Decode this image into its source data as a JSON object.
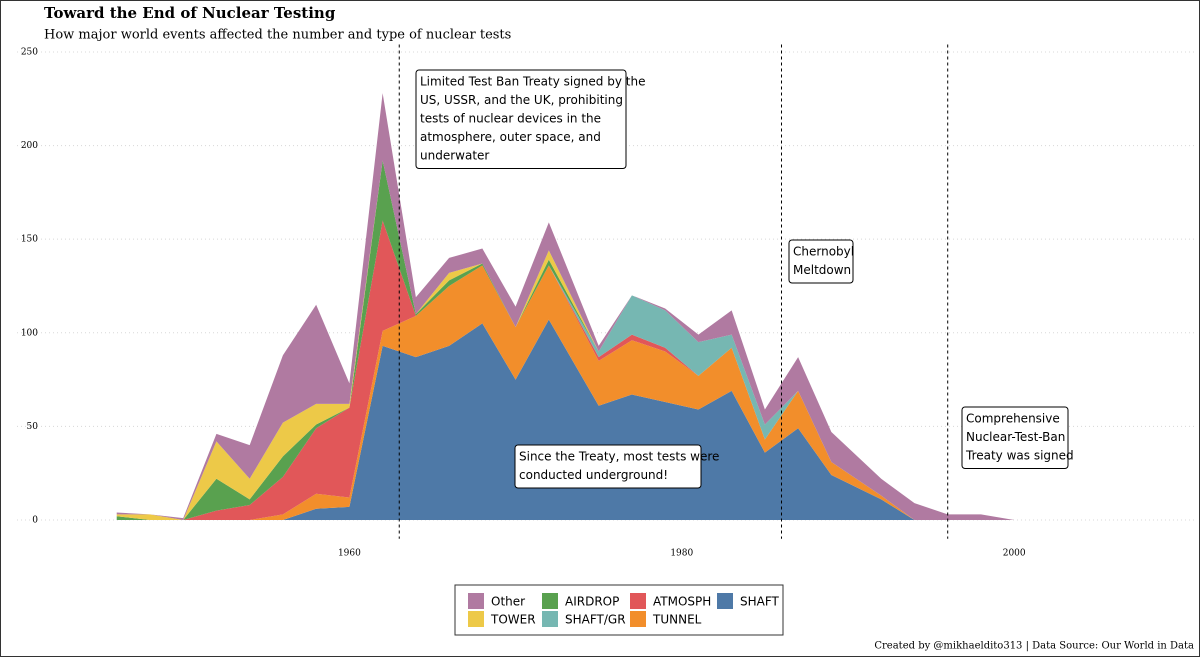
{
  "chart_data": {
    "type": "stacked-area",
    "title": "Toward the End of Nuclear Testing",
    "subtitle": "How major world events affected the number and type of nuclear tests",
    "caption": "Created by @mikhaeldito313 | Data Source: Our World in Data",
    "x": [
      1946,
      1948,
      1950,
      1952,
      1954,
      1956,
      1958,
      1960,
      1962,
      1964,
      1966,
      1968,
      1970,
      1972,
      1975,
      1977,
      1979,
      1981,
      1983,
      1985,
      1987,
      1989,
      1992,
      1994,
      1996,
      1998,
      2000
    ],
    "series": [
      {
        "name": "SHAFT",
        "color": "#4e79a7",
        "values": [
          0,
          0,
          0,
          0,
          0,
          0,
          6,
          7,
          93,
          87,
          93,
          105,
          75,
          107,
          61,
          67,
          63,
          59,
          69,
          36,
          49,
          24,
          11,
          0,
          0,
          0,
          0
        ]
      },
      {
        "name": "TUNNEL",
        "color": "#f28e2b",
        "values": [
          0,
          0,
          0,
          0,
          0,
          3,
          8,
          5,
          8,
          22,
          32,
          31,
          28,
          29,
          24,
          29,
          27,
          18,
          23,
          7,
          20,
          7,
          2,
          0,
          0,
          0,
          0
        ]
      },
      {
        "name": "ATMOSPH",
        "color": "#e15759",
        "values": [
          0,
          0,
          0,
          5,
          8,
          20,
          35,
          48,
          59,
          0,
          0,
          0,
          0,
          0,
          2,
          3,
          2,
          0,
          0,
          0,
          0,
          0,
          0,
          0,
          0,
          0,
          0
        ]
      },
      {
        "name": "SHAFT/GR",
        "color": "#76b7b2",
        "values": [
          0,
          0,
          0,
          0,
          0,
          0,
          0,
          0,
          0,
          0,
          0,
          0,
          0,
          0,
          3,
          21,
          20,
          18,
          7,
          8,
          0,
          0,
          0,
          0,
          0,
          0,
          0
        ]
      },
      {
        "name": "AIRDROP",
        "color": "#59a14f",
        "values": [
          2,
          0,
          0,
          17,
          3,
          11,
          2,
          0,
          32,
          1,
          3,
          1,
          0,
          3,
          0,
          0,
          0,
          0,
          0,
          0,
          0,
          0,
          0,
          0,
          0,
          0,
          0
        ]
      },
      {
        "name": "TOWER",
        "color": "#edc948",
        "values": [
          1,
          3,
          0,
          20,
          11,
          18,
          11,
          2,
          0,
          0,
          4,
          0,
          0,
          5,
          0,
          0,
          0,
          0,
          0,
          0,
          0,
          0,
          0,
          0,
          0,
          0,
          0
        ]
      },
      {
        "name": "Other",
        "color": "#b07aa1",
        "values": [
          1,
          0,
          1,
          4,
          18,
          36,
          53,
          11,
          36,
          9,
          8,
          8,
          11,
          15,
          3,
          0,
          1,
          4,
          13,
          8,
          18,
          16,
          9,
          9,
          3,
          3,
          0
        ]
      }
    ],
    "xlim": [
      1940,
      2011
    ],
    "xticks": [
      1960,
      1980,
      2000
    ],
    "ylim": [
      -10,
      254
    ],
    "yticks": [
      0,
      50,
      100,
      150,
      200,
      250
    ],
    "grid": true,
    "vlines": [
      1963,
      1986,
      1996
    ],
    "annotations": [
      {
        "lines": [
          "Limited Test Ban Treaty signed by the",
          "US, USSR, and the UK, prohibiting",
          "tests of nuclear devices in the",
          "atmosphere, outer space, and",
          "underwater"
        ]
      },
      {
        "lines": [
          "Chernobyl",
          "Meltdown"
        ]
      },
      {
        "lines": [
          "Comprehensive",
          "Nuclear-Test-Ban",
          "Treaty was signed"
        ]
      },
      {
        "lines": [
          "Since the Treaty, most tests were",
          "conducted underground!"
        ]
      }
    ],
    "legend": "bottom"
  }
}
